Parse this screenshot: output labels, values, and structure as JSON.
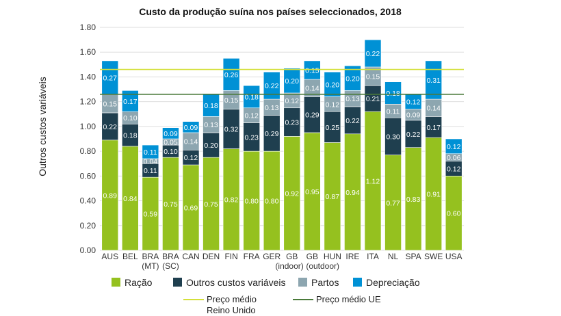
{
  "chart_data": {
    "type": "bar",
    "stacked": true,
    "title": "Custo da produção suína nos países seleccionados, 2018",
    "ylabel": "Outros custos variáveis",
    "xlabel": "",
    "ylim": [
      0,
      1.8
    ],
    "yticks": [
      "0.00",
      "0.20",
      "0.40",
      "0.60",
      "0.80",
      "1.00",
      "1.20",
      "1.40",
      "1.60",
      "1.80"
    ],
    "grid": true,
    "legend_position": "bottom",
    "categories": [
      [
        "AUS"
      ],
      [
        "BEL"
      ],
      [
        "BRA",
        "(MT)"
      ],
      [
        "BRA",
        "(SC)"
      ],
      [
        "CAN"
      ],
      [
        "DEN"
      ],
      [
        "FIN"
      ],
      [
        "FRA"
      ],
      [
        "GER"
      ],
      [
        "GB",
        "(indoor)"
      ],
      [
        "GB",
        "(outdoor)"
      ],
      [
        "HUN"
      ],
      [
        "IRE"
      ],
      [
        "ITA"
      ],
      [
        "NL"
      ],
      [
        "SPA"
      ],
      [
        "SWE"
      ],
      [
        "USA"
      ]
    ],
    "series": [
      {
        "name": "Ração",
        "color": "#95c11f",
        "values": [
          0.89,
          0.84,
          0.59,
          0.75,
          0.69,
          0.75,
          0.82,
          0.8,
          0.8,
          0.92,
          0.95,
          0.87,
          0.94,
          1.12,
          0.77,
          0.83,
          0.91,
          0.6
        ]
      },
      {
        "name": "Outros custos variáveis",
        "color": "#1f3f4f",
        "values": [
          0.22,
          0.18,
          0.11,
          0.1,
          0.12,
          0.2,
          0.32,
          0.23,
          0.29,
          0.23,
          0.29,
          0.25,
          0.22,
          0.21,
          0.3,
          0.22,
          0.17,
          0.12
        ]
      },
      {
        "name": "Partos",
        "color": "#8da6b0",
        "values": [
          0.15,
          0.1,
          0.04,
          0.05,
          0.14,
          0.13,
          0.15,
          0.12,
          0.13,
          0.12,
          0.14,
          0.12,
          0.13,
          0.15,
          0.11,
          0.09,
          0.14,
          0.06
        ]
      },
      {
        "name": "Depreciação",
        "color": "#0091d5",
        "values": [
          0.27,
          0.17,
          0.11,
          0.09,
          0.09,
          0.18,
          0.26,
          0.18,
          0.22,
          0.2,
          0.15,
          0.2,
          0.2,
          0.22,
          0.18,
          0.12,
          0.31,
          0.12
        ]
      }
    ],
    "reference_lines": [
      {
        "name": "Preço médio Reino Unido",
        "value": 1.46,
        "color": "#d4e03a"
      },
      {
        "name": "Preço médio UE",
        "value": 1.26,
        "color": "#4a7a3a"
      }
    ]
  }
}
